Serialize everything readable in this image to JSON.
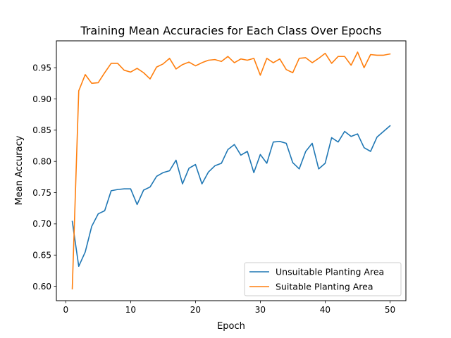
{
  "chart_data": {
    "type": "line",
    "title": "Training Mean Accuracies for Each Class Over Epochs",
    "xlabel": "Epoch",
    "ylabel": "Mean Accuracy",
    "xlim": [
      -1.45,
      52.45
    ],
    "ylim": [
      0.577,
      0.993
    ],
    "xticks": [
      0,
      10,
      20,
      30,
      40,
      50
    ],
    "yticks": [
      0.6,
      0.65,
      0.7,
      0.75,
      0.8,
      0.85,
      0.9,
      0.95
    ],
    "grid": false,
    "legend_position": "lower-right",
    "x": [
      1,
      2,
      3,
      4,
      5,
      6,
      7,
      8,
      9,
      10,
      11,
      12,
      13,
      14,
      15,
      16,
      17,
      18,
      19,
      20,
      21,
      22,
      23,
      24,
      25,
      26,
      27,
      28,
      29,
      30,
      31,
      32,
      33,
      34,
      35,
      36,
      37,
      38,
      39,
      40,
      41,
      42,
      43,
      44,
      45,
      46,
      47,
      48,
      49,
      50
    ],
    "series": [
      {
        "name": "Unsuitable Planting Area",
        "color": "#1f77b4",
        "values": [
          0.704,
          0.632,
          0.655,
          0.696,
          0.716,
          0.721,
          0.753,
          0.755,
          0.756,
          0.756,
          0.731,
          0.754,
          0.759,
          0.776,
          0.782,
          0.785,
          0.802,
          0.764,
          0.789,
          0.795,
          0.764,
          0.783,
          0.793,
          0.797,
          0.819,
          0.827,
          0.81,
          0.816,
          0.782,
          0.811,
          0.797,
          0.831,
          0.832,
          0.829,
          0.798,
          0.788,
          0.816,
          0.829,
          0.788,
          0.797,
          0.838,
          0.831,
          0.848,
          0.84,
          0.844,
          0.822,
          0.816,
          0.839,
          0.848,
          0.857
        ]
      },
      {
        "name": "Suitable Planting Area",
        "color": "#ff7f0e",
        "values": [
          0.596,
          0.913,
          0.939,
          0.925,
          0.926,
          0.942,
          0.957,
          0.957,
          0.946,
          0.943,
          0.949,
          0.942,
          0.932,
          0.951,
          0.956,
          0.965,
          0.948,
          0.955,
          0.959,
          0.953,
          0.958,
          0.962,
          0.963,
          0.96,
          0.968,
          0.958,
          0.964,
          0.962,
          0.965,
          0.938,
          0.965,
          0.958,
          0.964,
          0.947,
          0.942,
          0.965,
          0.966,
          0.958,
          0.965,
          0.973,
          0.957,
          0.968,
          0.968,
          0.954,
          0.975,
          0.95,
          0.971,
          0.97,
          0.97,
          0.972
        ]
      }
    ]
  }
}
